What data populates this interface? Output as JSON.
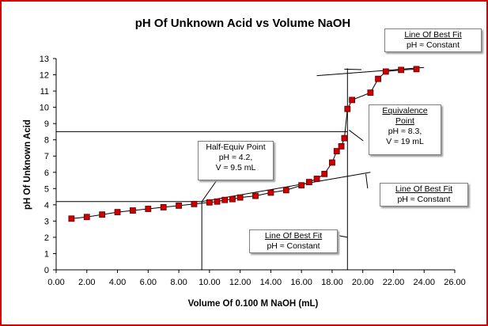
{
  "chart_data": {
    "type": "scatter",
    "title": "pH Of Unknown Acid vs Volume NaOH",
    "xlabel": "Volume Of 0.100 M NaOH (mL)",
    "ylabel": "pH Of Unknown Acid",
    "xlim": [
      0,
      26
    ],
    "ylim": [
      0,
      13
    ],
    "xticks": [
      "0.00",
      "2.00",
      "4.00",
      "6.00",
      "8.00",
      "10.00",
      "12.00",
      "14.00",
      "16.00",
      "18.00",
      "20.00",
      "22.00",
      "24.00",
      "26.00"
    ],
    "yticks": [
      "0",
      "1",
      "2",
      "3",
      "4",
      "5",
      "6",
      "7",
      "8",
      "9",
      "10",
      "11",
      "12",
      "13"
    ],
    "grid": false,
    "legend": "none",
    "marker_color": "#cc0000",
    "line_color": "#000000",
    "series": [
      {
        "x": [
          1.0,
          2.0,
          3.0,
          4.0,
          5.0,
          6.0,
          7.0,
          8.0,
          9.0,
          10.0,
          10.5,
          11.0,
          11.5,
          12.0,
          13.0,
          14.0,
          15.0,
          16.0,
          16.5,
          17.0,
          17.5,
          18.0,
          18.3,
          18.6,
          18.8,
          19.0,
          19.3,
          20.5,
          21.0,
          21.5,
          22.5,
          23.5
        ],
        "y": [
          3.15,
          3.25,
          3.4,
          3.55,
          3.65,
          3.75,
          3.85,
          3.95,
          4.05,
          4.15,
          4.2,
          4.3,
          4.35,
          4.45,
          4.55,
          4.75,
          4.9,
          5.2,
          5.4,
          5.6,
          5.9,
          6.6,
          7.3,
          7.6,
          8.1,
          9.9,
          10.45,
          10.9,
          11.75,
          12.2,
          12.3,
          12.35
        ]
      }
    ],
    "reference_lines": [
      {
        "type": "horizontal",
        "y": 4.2,
        "x_from": 0,
        "x_to": 9.5
      },
      {
        "type": "vertical",
        "x": 9.5,
        "y_from": 0,
        "y_to": 4.2
      },
      {
        "type": "horizontal",
        "y": 8.5,
        "x_from": 0,
        "x_to": 19
      },
      {
        "type": "vertical",
        "x": 19,
        "y_from": 0,
        "y_to": 12.4
      },
      {
        "type": "fit",
        "x1": 9.5,
        "y1": 4.2,
        "x2": 20.5,
        "y2": 6.0
      },
      {
        "type": "fit",
        "x1": 17,
        "y1": 11.95,
        "x2": 24,
        "y2": 12.45
      }
    ],
    "annotations": [
      {
        "heading": "Line Of Best Fit",
        "lines": [
          "pH ≈ Constant"
        ]
      },
      {
        "heading": "Equivalence Point",
        "lines": [
          "pH ≈ 8.3,",
          "V ≈ 19 mL"
        ]
      },
      {
        "heading": "Half-Equiv Point",
        "lines": [
          "pH ≈ 4.2,",
          "V ≈ 9.5 mL"
        ]
      },
      {
        "heading": "Line Of Best Fit",
        "lines": [
          "pH ≈ Constant"
        ]
      },
      {
        "heading": "Line Of Best Fit",
        "lines": [
          "pH ≈ Constant"
        ]
      }
    ]
  }
}
